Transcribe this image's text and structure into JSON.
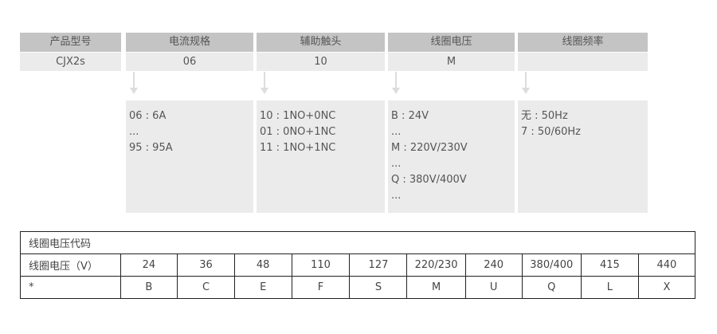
{
  "header": [
    "产品型号",
    "电流规格",
    "辅助触头",
    "线圈电压",
    "线圈频率"
  ],
  "values": [
    "CJX2s",
    "06",
    "10",
    "M",
    ""
  ],
  "details": [
    [
      "06 : 6A",
      "...",
      "95 : 95A"
    ],
    [
      "10 : 1NO+0NC",
      "01 : 0NO+1NC",
      "11 : 1NO+1NC"
    ],
    [
      "B : 24V",
      "...",
      "M : 220V/230V",
      "...",
      "Q : 380V/400V",
      "..."
    ],
    [
      "无 : 50Hz",
      "7 : 50/60Hz"
    ]
  ],
  "table": {
    "title": "线圈电压代码",
    "row_voltage": [
      "线圈电压（V）",
      "24",
      "36",
      "48",
      "110",
      "127",
      "220/230",
      "240",
      "380/400",
      "415",
      "440"
    ],
    "row_code": [
      "*",
      "B",
      "C",
      "E",
      "F",
      "S",
      "M",
      "U",
      "Q",
      "L",
      "X"
    ]
  }
}
